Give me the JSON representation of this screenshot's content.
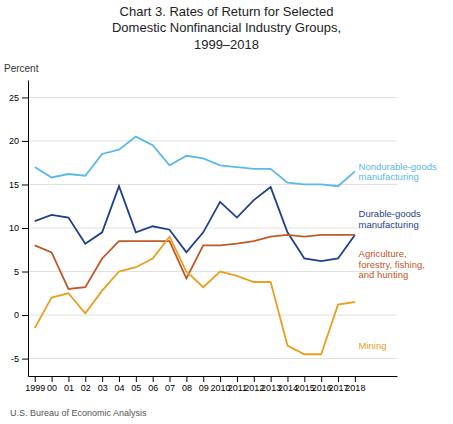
{
  "chart_data": {
    "type": "line",
    "title": "Chart 3. Rates of Return for Selected\nDomestic Nonfinancial Industry Groups,\n1999–2018",
    "ylabel": "Percent",
    "source": "U.S. Bureau of Economic Analysis",
    "x": [
      1999,
      2000,
      2001,
      2002,
      2003,
      2004,
      2005,
      2006,
      2007,
      2008,
      2009,
      2010,
      2011,
      2012,
      2013,
      2014,
      2015,
      2016,
      2017,
      2018
    ],
    "xlim": [
      1998.6,
      2020.5
    ],
    "xticks": [
      1999,
      {
        "value": 2000,
        "label": "00"
      },
      {
        "value": 2001,
        "label": "01"
      },
      {
        "value": 2002,
        "label": "02"
      },
      {
        "value": 2003,
        "label": "03"
      },
      {
        "value": 2004,
        "label": "04"
      },
      {
        "value": 2005,
        "label": "05"
      },
      {
        "value": 2006,
        "label": "06"
      },
      {
        "value": 2007,
        "label": "07"
      },
      {
        "value": 2008,
        "label": "08"
      },
      {
        "value": 2009,
        "label": "09"
      },
      2010,
      2011,
      2012,
      2013,
      2014,
      2015,
      2016,
      2017,
      2018
    ],
    "ylim": [
      -7,
      27
    ],
    "yticks": [
      -5,
      0,
      5,
      10,
      15,
      20,
      25
    ],
    "grid": true,
    "series": [
      {
        "color": "#5BB8E8",
        "values": [
          17.0,
          15.8,
          16.2,
          16.0,
          18.5,
          19.0,
          20.5,
          19.5,
          17.2,
          18.3,
          18.0,
          17.2,
          17.0,
          16.8,
          16.8,
          15.2,
          15.0,
          15.0,
          14.8,
          16.5
        ]
      },
      {
        "color": "#1F3F8A",
        "values": [
          10.8,
          11.5,
          11.2,
          8.2,
          9.5,
          14.8,
          9.5,
          10.2,
          9.8,
          7.2,
          9.5,
          13.0,
          11.2,
          13.2,
          14.7,
          9.5,
          6.5,
          6.2,
          6.5,
          9.2
        ]
      },
      {
        "color": "#C05828",
        "values": [
          8.0,
          7.2,
          3.0,
          3.2,
          6.5,
          8.5,
          8.5,
          8.5,
          8.5,
          4.2,
          8.0,
          8.0,
          8.2,
          8.5,
          9.0,
          9.2,
          9.0,
          9.2,
          9.2,
          9.2
        ]
      },
      {
        "color": "#E8A020",
        "values": [
          -1.5,
          2.0,
          2.5,
          0.2,
          2.8,
          5.0,
          5.5,
          6.5,
          9.0,
          5.0,
          3.2,
          5.0,
          4.5,
          3.8,
          3.8,
          -3.5,
          -4.5,
          -4.5,
          1.2,
          1.5
        ]
      }
    ],
    "annotations": [
      {
        "text": "Nondurable-goods\nmanufacturing",
        "x": 2018.1,
        "y": 16.5
      },
      {
        "text": "Durable-goods\nmanufacturing",
        "x": 2018.1,
        "y": 11.0
      },
      {
        "text": "Agriculture,\nforestry, fishing,\nand hunting",
        "x": 2018.1,
        "y": 5.8
      },
      {
        "text": "Mining",
        "x": 2018.1,
        "y": -3.5
      }
    ]
  }
}
